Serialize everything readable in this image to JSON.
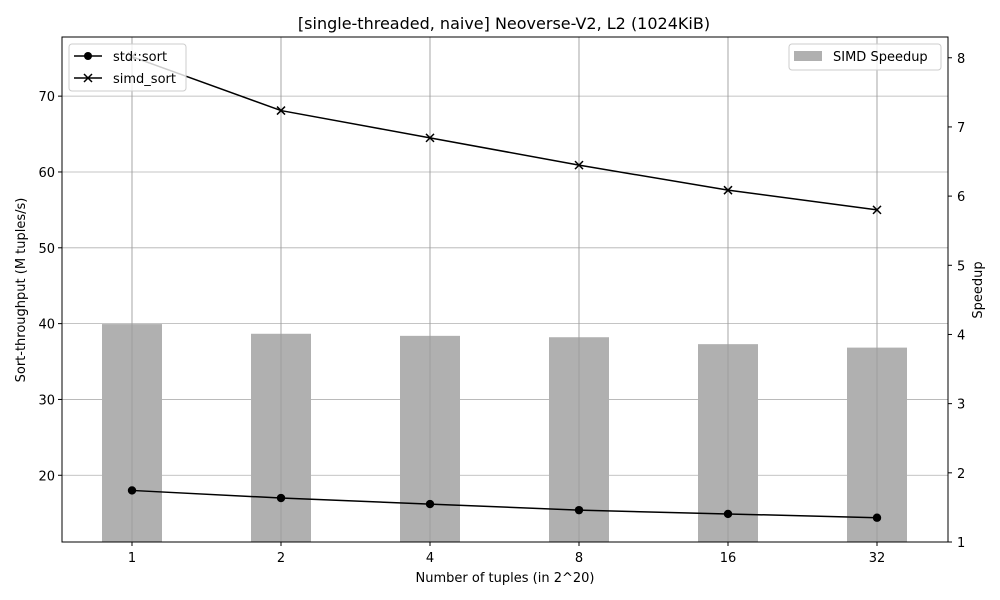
{
  "chart_data": {
    "type": "bar+line",
    "title": "[single-threaded, naive] Neoverse-V2, L2 (1024KiB)",
    "xlabel": "Number of tuples (in 2^20)",
    "ylabel_left": "Sort-throughput (M tuples/s)",
    "ylabel_right": "Speedup",
    "categories": [
      "1",
      "2",
      "4",
      "8",
      "16",
      "32"
    ],
    "ylim_left": [
      11.2,
      77.8
    ],
    "ylim_right": [
      1.0,
      8.3
    ],
    "yticks_left": [
      20,
      30,
      40,
      50,
      60,
      70
    ],
    "yticks_right": [
      1,
      2,
      3,
      4,
      5,
      6,
      7,
      8
    ],
    "grid": true,
    "series": [
      {
        "name": "std::sort",
        "type": "line",
        "axis": "left",
        "marker": "circle",
        "color": "#000000",
        "values": [
          18.0,
          17.0,
          16.2,
          15.4,
          14.9,
          14.4
        ]
      },
      {
        "name": "simd_sort",
        "type": "line",
        "axis": "left",
        "marker": "x",
        "color": "#000000",
        "values": [
          75.2,
          68.1,
          64.5,
          60.9,
          57.6,
          55.0
        ]
      },
      {
        "name": "SIMD Speedup",
        "type": "bar",
        "axis": "right",
        "color": "#b0b0b0",
        "values": [
          4.15,
          4.01,
          3.98,
          3.96,
          3.86,
          3.81
        ]
      }
    ],
    "legend_left": [
      "std::sort",
      "simd_sort"
    ],
    "legend_right": [
      "SIMD Speedup"
    ],
    "legend_left_placement": "top-left",
    "legend_right_placement": "top-right"
  }
}
